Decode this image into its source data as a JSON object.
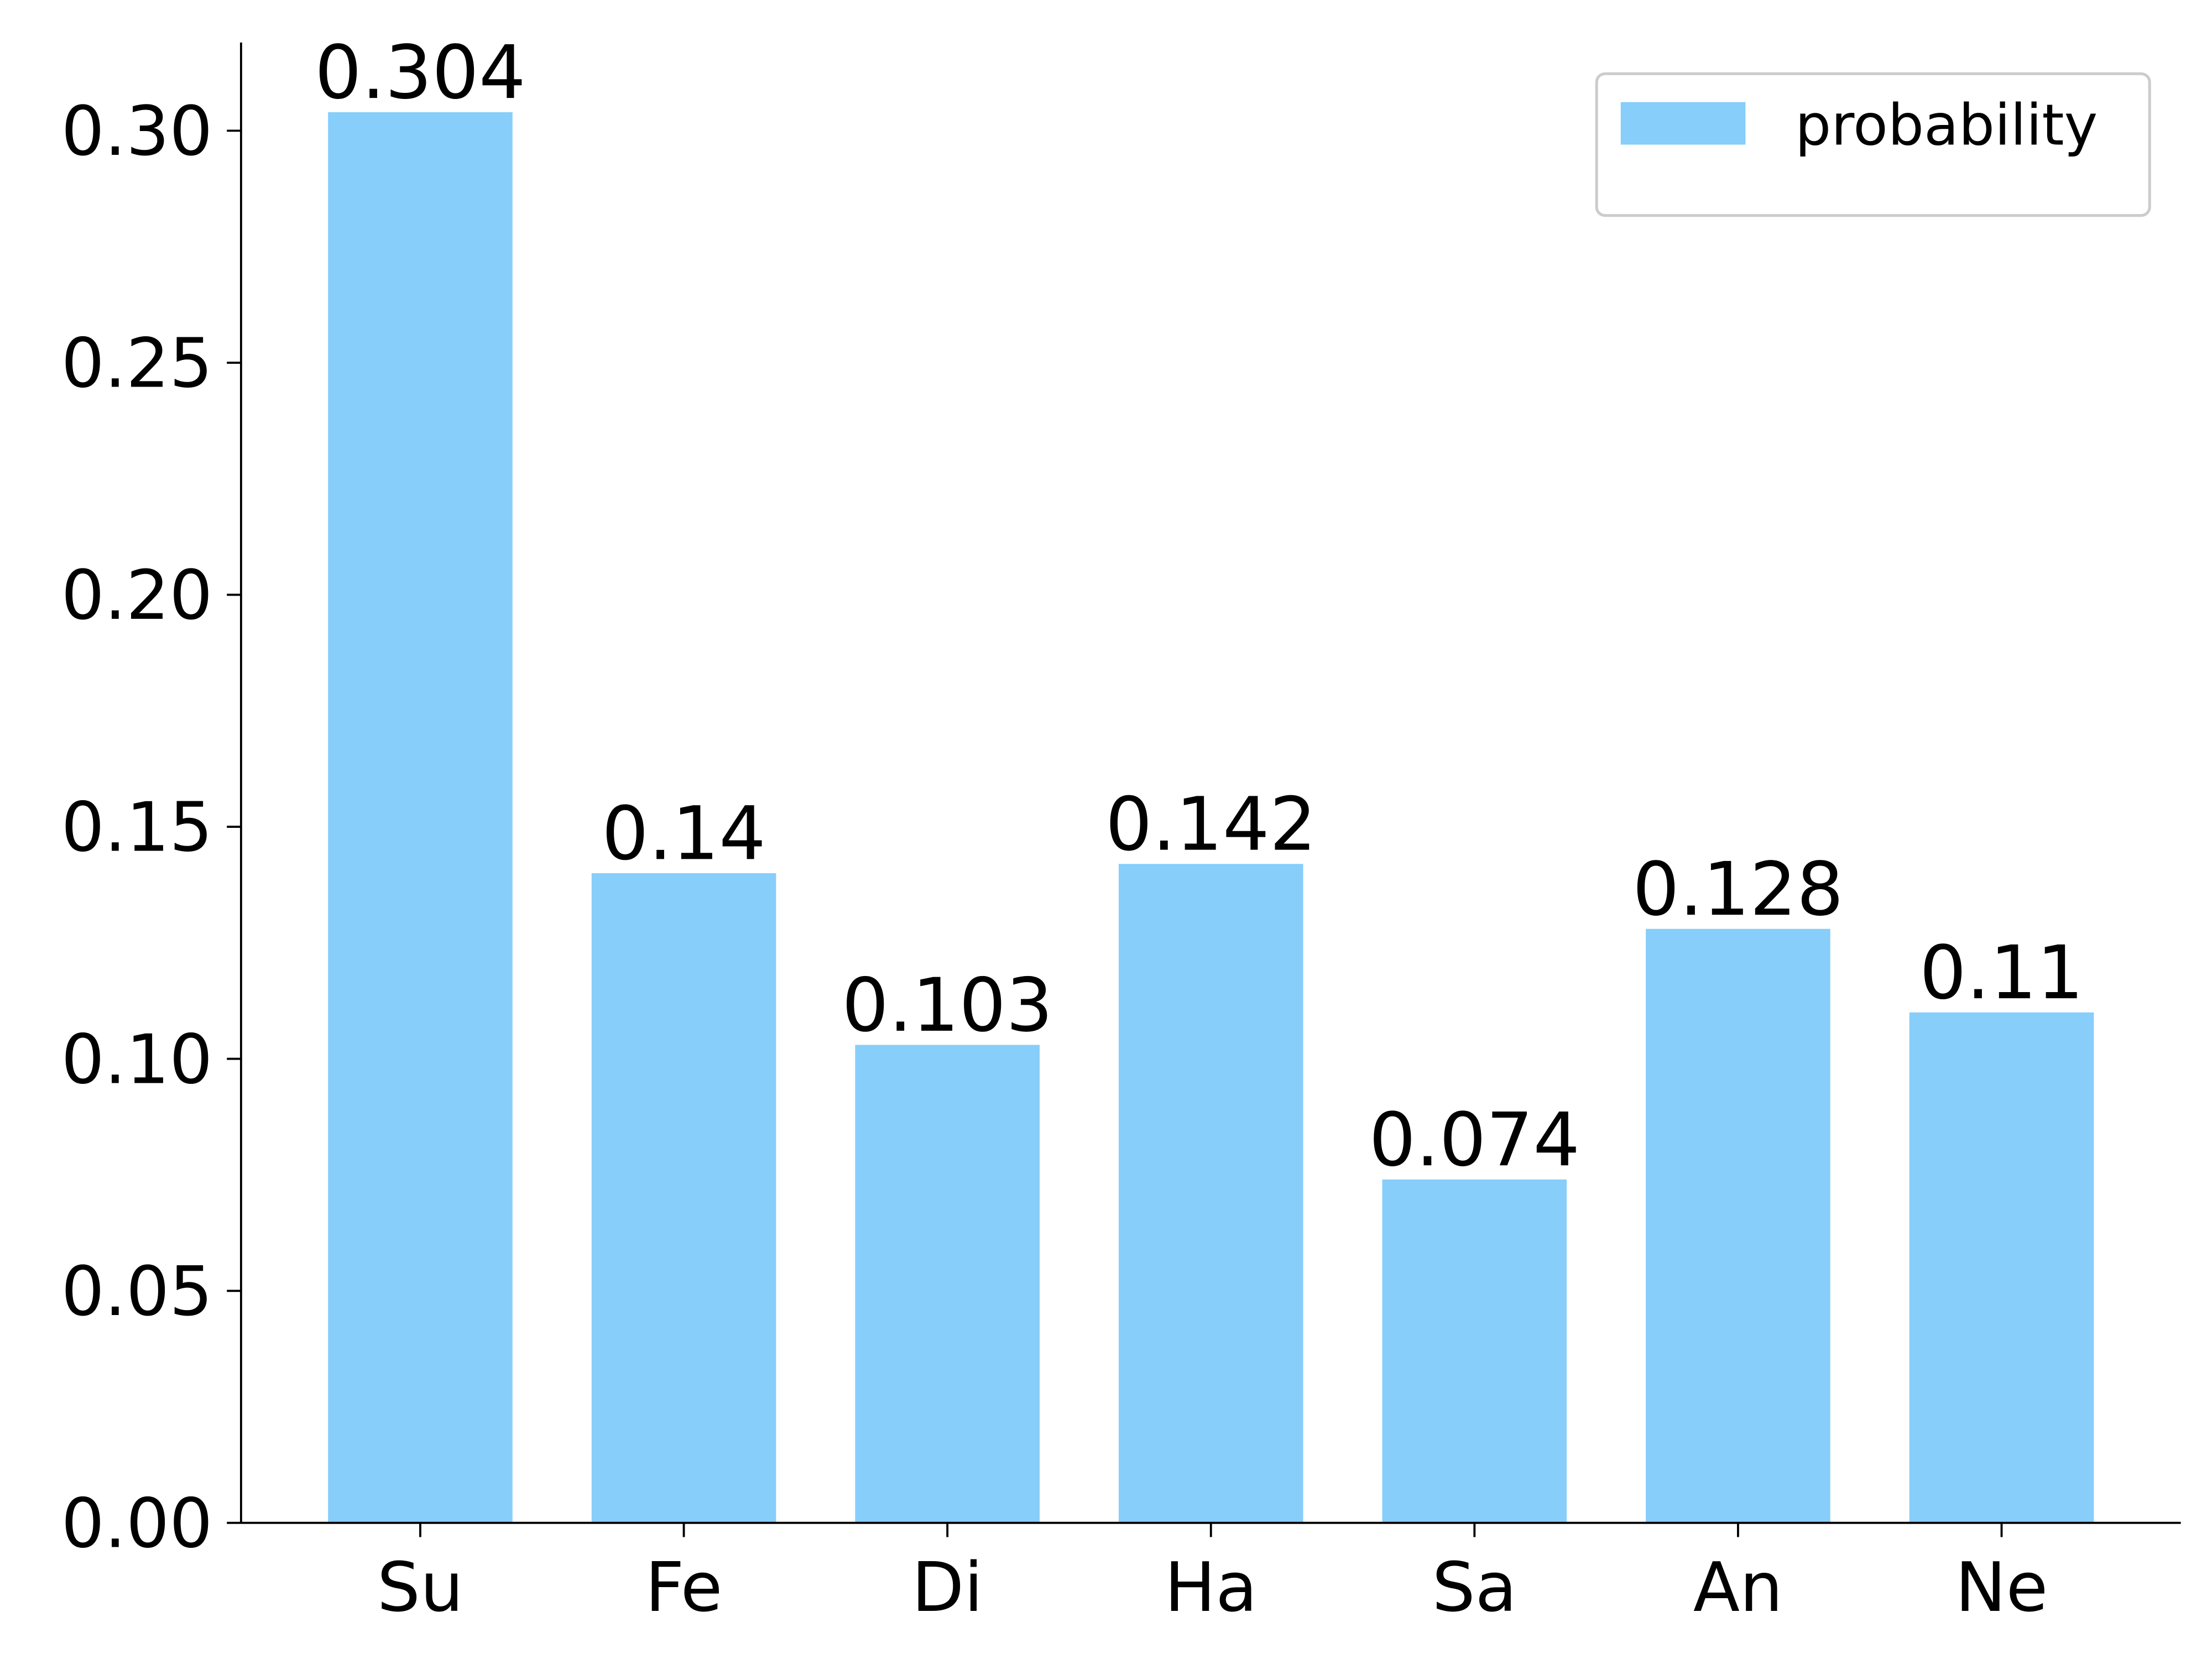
{
  "chart_data": {
    "type": "bar",
    "categories": [
      "Su",
      "Fe",
      "Di",
      "Ha",
      "Sa",
      "An",
      "Ne"
    ],
    "series": [
      {
        "name": "probability",
        "color": "#87cefa",
        "values": [
          0.304,
          0.14,
          0.103,
          0.142,
          0.074,
          0.128,
          0.11
        ]
      }
    ],
    "ylim": [
      0,
      0.319
    ],
    "yticks": [
      {
        "value": 0,
        "label": "0.00"
      },
      {
        "value": 0.05,
        "label": "0.05"
      },
      {
        "value": 0.1,
        "label": "0.10"
      },
      {
        "value": 0.15,
        "label": "0.15"
      },
      {
        "value": 0.2,
        "label": "0.20"
      },
      {
        "value": 0.25,
        "label": "0.25"
      },
      {
        "value": 0.3,
        "label": "0.30"
      }
    ],
    "legend": "upper right"
  }
}
